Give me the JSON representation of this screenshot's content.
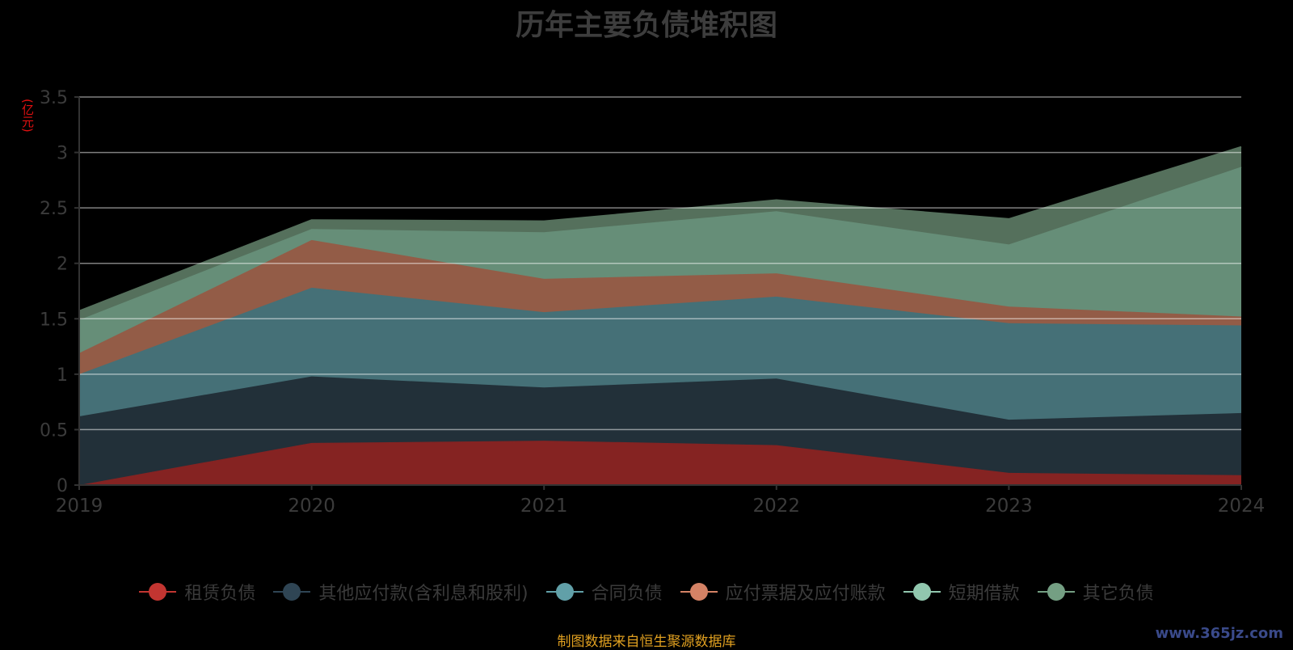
{
  "chart_data": {
    "type": "area",
    "title": "历年主要负债堆积图",
    "unit_label": "(亿元)",
    "stacked": true,
    "x": [
      "2019",
      "2020",
      "2021",
      "2022",
      "2023",
      "2024"
    ],
    "ylim": [
      0,
      3.5
    ],
    "yticks": [
      "0",
      "0.5",
      "1",
      "1.5",
      "2",
      "2.5",
      "3",
      "3.5"
    ],
    "grid": true,
    "legend_position": "bottom",
    "series": [
      {
        "name": "租赁负债",
        "color": "#c23531",
        "fill": "#852322",
        "values": [
          0.0,
          0.38,
          0.4,
          0.36,
          0.11,
          0.09
        ]
      },
      {
        "name": "其他应付款(含利息和股利)",
        "color": "#2f4554",
        "fill": "#223039",
        "values": [
          0.62,
          0.6,
          0.48,
          0.6,
          0.48,
          0.56
        ]
      },
      {
        "name": "合同负债",
        "color": "#61a0a8",
        "fill": "#457077",
        "values": [
          0.38,
          0.8,
          0.68,
          0.74,
          0.87,
          0.79
        ]
      },
      {
        "name": "应付票据及应付账款",
        "color": "#d48265",
        "fill": "#935c47",
        "values": [
          0.19,
          0.43,
          0.3,
          0.21,
          0.15,
          0.08
        ]
      },
      {
        "name": "短期借款",
        "color": "#91c7ae",
        "fill": "#668e78",
        "values": [
          0.3,
          0.1,
          0.42,
          0.56,
          0.56,
          1.35
        ]
      },
      {
        "name": "其它负债",
        "color": "#749f83",
        "fill": "#55705c",
        "values": [
          0.08,
          0.08,
          0.1,
          0.1,
          0.23,
          0.18
        ]
      }
    ],
    "source": "制图数据来自恒生聚源数据库",
    "watermark": "www.365jz.com"
  }
}
